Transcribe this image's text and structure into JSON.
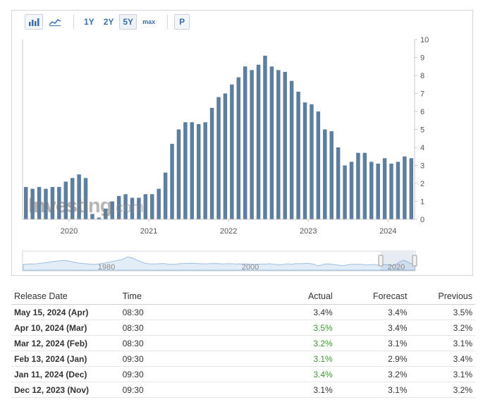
{
  "toolbar": {
    "buttons": [
      {
        "icon": "bar-chart-icon"
      },
      {
        "icon": "line-chart-icon"
      },
      {
        "label": "1Y"
      },
      {
        "label": "2Y"
      },
      {
        "label": "5Y",
        "active": true
      },
      {
        "label": "max"
      },
      {
        "label": "P"
      }
    ]
  },
  "watermark": {
    "brand": "Investing",
    "suffix": ".com"
  },
  "chart_data": {
    "type": "bar",
    "title": "",
    "xlabel": "",
    "ylabel": "",
    "ylim": [
      0,
      10
    ],
    "y_ticks": [
      "0",
      "1",
      "2",
      "3",
      "4",
      "5",
      "6",
      "7",
      "8",
      "9",
      "10"
    ],
    "x_ticks": [
      {
        "label": "2020",
        "month_index": 7
      },
      {
        "label": "2021",
        "month_index": 19
      },
      {
        "label": "2022",
        "month_index": 31
      },
      {
        "label": "2023",
        "month_index": 43
      },
      {
        "label": "2024",
        "month_index": 55
      }
    ],
    "start": "2019-06",
    "months": [
      "2019-06",
      "2019-07",
      "2019-08",
      "2019-09",
      "2019-10",
      "2019-11",
      "2019-12",
      "2020-01",
      "2020-02",
      "2020-03",
      "2020-04",
      "2020-05",
      "2020-06",
      "2020-07",
      "2020-08",
      "2020-09",
      "2020-10",
      "2020-11",
      "2020-12",
      "2021-01",
      "2021-02",
      "2021-03",
      "2021-04",
      "2021-05",
      "2021-06",
      "2021-07",
      "2021-08",
      "2021-09",
      "2021-10",
      "2021-11",
      "2021-12",
      "2022-01",
      "2022-02",
      "2022-03",
      "2022-04",
      "2022-05",
      "2022-06",
      "2022-07",
      "2022-08",
      "2022-09",
      "2022-10",
      "2022-11",
      "2022-12",
      "2023-01",
      "2023-02",
      "2023-03",
      "2023-04",
      "2023-05",
      "2023-06",
      "2023-07",
      "2023-08",
      "2023-09",
      "2023-10",
      "2023-11",
      "2023-12",
      "2024-01",
      "2024-02",
      "2024-03",
      "2024-04"
    ],
    "values": [
      1.8,
      1.7,
      1.8,
      1.7,
      1.8,
      1.8,
      2.1,
      2.3,
      2.5,
      2.3,
      0.3,
      0.1,
      0.6,
      1.0,
      1.3,
      1.4,
      1.2,
      1.2,
      1.4,
      1.4,
      1.7,
      2.6,
      4.2,
      5.0,
      5.4,
      5.4,
      5.3,
      5.4,
      6.2,
      6.8,
      7.0,
      7.5,
      7.9,
      8.5,
      8.3,
      8.6,
      9.1,
      8.5,
      8.3,
      8.2,
      7.7,
      7.1,
      6.5,
      6.4,
      6.0,
      5.0,
      4.9,
      4.0,
      3.0,
      3.2,
      3.7,
      3.7,
      3.2,
      3.1,
      3.4,
      3.1,
      3.2,
      3.5,
      3.4
    ],
    "bar_color": "#5d7e9f",
    "grid": false
  },
  "navigator": {
    "labels": [
      "1980",
      "2000",
      "2020"
    ],
    "series": [
      2.2,
      2.6,
      3.0,
      2.8,
      3.4,
      4.2,
      4.8,
      5.6,
      6.6,
      7.2,
      7.8,
      8.2,
      7.4,
      6.2,
      5.0,
      4.2,
      3.6,
      3.0,
      2.6,
      2.2,
      2.8,
      3.6,
      4.4,
      5.6,
      6.8,
      7.8,
      9.0,
      10.5,
      13.5,
      12.2,
      10.0,
      7.6,
      5.2,
      3.6,
      3.0,
      2.8,
      3.0,
      3.4,
      3.2,
      2.6,
      2.2,
      2.6,
      3.2,
      3.6,
      3.8,
      4.2,
      3.8,
      3.4,
      3.0,
      3.0,
      3.4,
      3.6,
      3.4,
      3.0,
      3.0,
      3.2,
      3.2,
      2.8,
      3.0,
      2.8,
      2.8,
      2.6,
      2.4,
      2.6,
      2.8,
      2.6,
      3.2,
      2.6,
      2.2,
      1.6,
      2.6,
      3.2,
      2.4,
      3.4,
      3.2,
      3.2,
      4.0,
      3.4,
      2.4,
      0.2,
      1.4,
      2.8,
      3.0,
      2.2,
      1.6,
      0.8,
      0.4,
      1.6,
      2.2,
      2.4,
      2.6,
      2.2,
      1.4,
      1.8,
      2.2,
      1.6,
      1.8,
      2.4,
      1.4,
      0.8,
      2.4,
      6.0,
      8.6,
      6.2,
      3.6,
      3.2
    ]
  },
  "table": {
    "headers": {
      "release_date": "Release Date",
      "time": "Time",
      "actual": "Actual",
      "forecast": "Forecast",
      "previous": "Previous"
    },
    "rows": [
      {
        "release_date": "May 15, 2024 (Apr)",
        "time": "08:30",
        "actual": "3.4%",
        "forecast": "3.4%",
        "previous": "3.5%",
        "actual_color": "#333333"
      },
      {
        "release_date": "Apr 10, 2024 (Mar)",
        "time": "08:30",
        "actual": "3.5%",
        "forecast": "3.4%",
        "previous": "3.2%",
        "actual_color": "#3a9a2e"
      },
      {
        "release_date": "Mar 12, 2024 (Feb)",
        "time": "08:30",
        "actual": "3.2%",
        "forecast": "3.1%",
        "previous": "3.1%",
        "actual_color": "#3a9a2e"
      },
      {
        "release_date": "Feb 13, 2024 (Jan)",
        "time": "09:30",
        "actual": "3.1%",
        "forecast": "2.9%",
        "previous": "3.4%",
        "actual_color": "#3a9a2e"
      },
      {
        "release_date": "Jan 11, 2024 (Dec)",
        "time": "09:30",
        "actual": "3.4%",
        "forecast": "3.2%",
        "previous": "3.1%",
        "actual_color": "#3a9a2e"
      },
      {
        "release_date": "Dec 12, 2023 (Nov)",
        "time": "09:30",
        "actual": "3.1%",
        "forecast": "3.1%",
        "previous": "3.2%",
        "actual_color": "#333333"
      }
    ]
  }
}
